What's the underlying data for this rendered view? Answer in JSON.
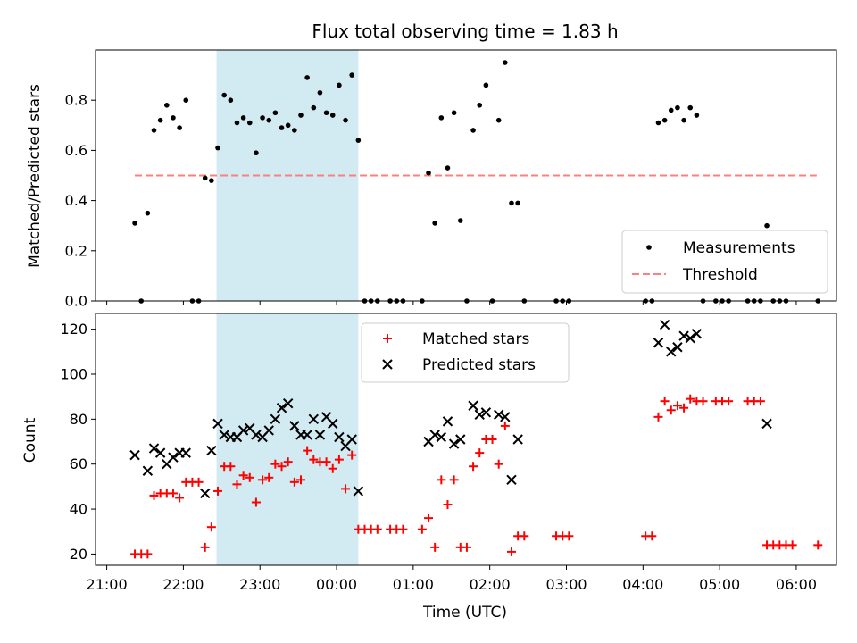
{
  "chart_data": {
    "title": "Flux total observing time = 1.83 h",
    "xlabel": "Time (UTC)",
    "x_ticks": [
      {
        "t": 0,
        "label": "21:00"
      },
      {
        "t": 60,
        "label": "22:00"
      },
      {
        "t": 120,
        "label": "23:00"
      },
      {
        "t": 180,
        "label": "00:00"
      },
      {
        "t": 240,
        "label": "01:00"
      },
      {
        "t": 300,
        "label": "02:00"
      },
      {
        "t": 360,
        "label": "03:00"
      },
      {
        "t": 420,
        "label": "04:00"
      },
      {
        "t": 480,
        "label": "05:00"
      },
      {
        "t": 540,
        "label": "06:00"
      }
    ],
    "shaded_interval": {
      "start": 86,
      "end": 197,
      "color": "#add8e6"
    },
    "top": {
      "type": "scatter",
      "ylabel": "Matched/Predicted stars",
      "ylim": [
        0,
        1.0
      ],
      "yticks": [
        0.0,
        0.2,
        0.4,
        0.6,
        0.8
      ],
      "threshold": {
        "name": "Threshold",
        "value": 0.5,
        "x_range": [
          22,
          556
        ],
        "color": "#ff7f7f"
      },
      "measurements": {
        "name": "Measurements",
        "color": "#000000",
        "points": [
          [
            22,
            0.31
          ],
          [
            27,
            0.0
          ],
          [
            32,
            0.35
          ],
          [
            37,
            0.68
          ],
          [
            42,
            0.72
          ],
          [
            47,
            0.78
          ],
          [
            52,
            0.73
          ],
          [
            57,
            0.69
          ],
          [
            62,
            0.8
          ],
          [
            67,
            0.0
          ],
          [
            72,
            0.0
          ],
          [
            77,
            0.49
          ],
          [
            82,
            0.48
          ],
          [
            87,
            0.61
          ],
          [
            92,
            0.82
          ],
          [
            97,
            0.8
          ],
          [
            102,
            0.71
          ],
          [
            107,
            0.73
          ],
          [
            112,
            0.71
          ],
          [
            117,
            0.59
          ],
          [
            122,
            0.73
          ],
          [
            127,
            0.72
          ],
          [
            132,
            0.75
          ],
          [
            137,
            0.69
          ],
          [
            142,
            0.7
          ],
          [
            147,
            0.68
          ],
          [
            152,
            0.74
          ],
          [
            157,
            0.89
          ],
          [
            162,
            0.77
          ],
          [
            167,
            0.83
          ],
          [
            172,
            0.75
          ],
          [
            177,
            0.74
          ],
          [
            182,
            0.86
          ],
          [
            187,
            0.72
          ],
          [
            192,
            0.9
          ],
          [
            197,
            0.64
          ],
          [
            202,
            0.0
          ],
          [
            207,
            0.0
          ],
          [
            212,
            0.0
          ],
          [
            222,
            0.0
          ],
          [
            227,
            0.0
          ],
          [
            232,
            0.0
          ],
          [
            247,
            0.0
          ],
          [
            252,
            0.51
          ],
          [
            257,
            0.31
          ],
          [
            262,
            0.73
          ],
          [
            267,
            0.53
          ],
          [
            272,
            0.75
          ],
          [
            277,
            0.32
          ],
          [
            282,
            0.0
          ],
          [
            287,
            0.68
          ],
          [
            292,
            0.78
          ],
          [
            297,
            0.86
          ],
          [
            302,
            0.0
          ],
          [
            307,
            0.72
          ],
          [
            312,
            0.95
          ],
          [
            317,
            0.39
          ],
          [
            322,
            0.39
          ],
          [
            327,
            0.0
          ],
          [
            352,
            0.0
          ],
          [
            357,
            0.0
          ],
          [
            362,
            0.0
          ],
          [
            422,
            0.0
          ],
          [
            427,
            0.0
          ],
          [
            432,
            0.71
          ],
          [
            437,
            0.72
          ],
          [
            442,
            0.76
          ],
          [
            447,
            0.77
          ],
          [
            452,
            0.72
          ],
          [
            457,
            0.77
          ],
          [
            462,
            0.74
          ],
          [
            467,
            0.0
          ],
          [
            477,
            0.0
          ],
          [
            482,
            0.0
          ],
          [
            487,
            0.0
          ],
          [
            502,
            0.0
          ],
          [
            507,
            0.0
          ],
          [
            512,
            0.0
          ],
          [
            517,
            0.3
          ],
          [
            522,
            0.0
          ],
          [
            527,
            0.0
          ],
          [
            532,
            0.0
          ],
          [
            557,
            0.0
          ]
        ]
      },
      "legend": {
        "position": "lower right",
        "entries": [
          "Measurements",
          "Threshold"
        ]
      }
    },
    "bottom": {
      "type": "scatter",
      "ylabel": "Count",
      "ylim": [
        15,
        127
      ],
      "yticks": [
        20,
        40,
        60,
        80,
        100,
        120
      ],
      "matched": {
        "name": "Matched stars",
        "color": "#ff0000",
        "points": [
          [
            22,
            20
          ],
          [
            27,
            20
          ],
          [
            32,
            20
          ],
          [
            37,
            46
          ],
          [
            42,
            47
          ],
          [
            47,
            47
          ],
          [
            52,
            47
          ],
          [
            57,
            45
          ],
          [
            62,
            52
          ],
          [
            67,
            52
          ],
          [
            72,
            52
          ],
          [
            77,
            23
          ],
          [
            82,
            32
          ],
          [
            87,
            48
          ],
          [
            92,
            59
          ],
          [
            97,
            59
          ],
          [
            102,
            51
          ],
          [
            107,
            55
          ],
          [
            112,
            54
          ],
          [
            117,
            43
          ],
          [
            122,
            53
          ],
          [
            127,
            54
          ],
          [
            132,
            60
          ],
          [
            137,
            59
          ],
          [
            142,
            61
          ],
          [
            147,
            52
          ],
          [
            152,
            53
          ],
          [
            157,
            66
          ],
          [
            162,
            62
          ],
          [
            167,
            61
          ],
          [
            172,
            61
          ],
          [
            177,
            58
          ],
          [
            182,
            62
          ],
          [
            187,
            49
          ],
          [
            192,
            64
          ],
          [
            197,
            31
          ],
          [
            202,
            31
          ],
          [
            207,
            31
          ],
          [
            212,
            31
          ],
          [
            222,
            31
          ],
          [
            227,
            31
          ],
          [
            232,
            31
          ],
          [
            247,
            31
          ],
          [
            252,
            36
          ],
          [
            257,
            23
          ],
          [
            262,
            53
          ],
          [
            267,
            42
          ],
          [
            272,
            53
          ],
          [
            277,
            23
          ],
          [
            282,
            23
          ],
          [
            287,
            59
          ],
          [
            292,
            65
          ],
          [
            297,
            71
          ],
          [
            302,
            71
          ],
          [
            307,
            60
          ],
          [
            312,
            77
          ],
          [
            317,
            21
          ],
          [
            322,
            28
          ],
          [
            327,
            28
          ],
          [
            352,
            28
          ],
          [
            357,
            28
          ],
          [
            362,
            28
          ],
          [
            422,
            28
          ],
          [
            427,
            28
          ],
          [
            432,
            81
          ],
          [
            437,
            88
          ],
          [
            442,
            84
          ],
          [
            447,
            86
          ],
          [
            452,
            85
          ],
          [
            457,
            89
          ],
          [
            462,
            88
          ],
          [
            467,
            88
          ],
          [
            477,
            88
          ],
          [
            482,
            88
          ],
          [
            487,
            88
          ],
          [
            502,
            88
          ],
          [
            507,
            88
          ],
          [
            512,
            88
          ],
          [
            517,
            24
          ],
          [
            522,
            24
          ],
          [
            527,
            24
          ],
          [
            532,
            24
          ],
          [
            537,
            24
          ],
          [
            557,
            24
          ]
        ]
      },
      "predicted": {
        "name": "Predicted stars",
        "color": "#000000",
        "points": [
          [
            22,
            64
          ],
          [
            32,
            57
          ],
          [
            37,
            67
          ],
          [
            42,
            65
          ],
          [
            47,
            60
          ],
          [
            52,
            63
          ],
          [
            57,
            65
          ],
          [
            62,
            65
          ],
          [
            77,
            47
          ],
          [
            82,
            66
          ],
          [
            87,
            78
          ],
          [
            92,
            73
          ],
          [
            97,
            72
          ],
          [
            102,
            72
          ],
          [
            107,
            75
          ],
          [
            112,
            76
          ],
          [
            117,
            73
          ],
          [
            122,
            72
          ],
          [
            127,
            75
          ],
          [
            132,
            80
          ],
          [
            137,
            85
          ],
          [
            142,
            87
          ],
          [
            147,
            77
          ],
          [
            152,
            73
          ],
          [
            157,
            73
          ],
          [
            162,
            80
          ],
          [
            167,
            73
          ],
          [
            172,
            81
          ],
          [
            177,
            78
          ],
          [
            182,
            72
          ],
          [
            187,
            68
          ],
          [
            192,
            71
          ],
          [
            197,
            48
          ],
          [
            252,
            70
          ],
          [
            257,
            73
          ],
          [
            262,
            72
          ],
          [
            267,
            79
          ],
          [
            272,
            69
          ],
          [
            277,
            71
          ],
          [
            287,
            86
          ],
          [
            292,
            82
          ],
          [
            297,
            83
          ],
          [
            307,
            82
          ],
          [
            312,
            81
          ],
          [
            317,
            53
          ],
          [
            322,
            71
          ],
          [
            432,
            114
          ],
          [
            437,
            122
          ],
          [
            442,
            110
          ],
          [
            447,
            112
          ],
          [
            452,
            117
          ],
          [
            457,
            116
          ],
          [
            462,
            118
          ],
          [
            517,
            78
          ]
        ]
      },
      "legend": {
        "position": "upper center",
        "entries": [
          "Matched stars",
          "Predicted stars"
        ]
      }
    }
  }
}
